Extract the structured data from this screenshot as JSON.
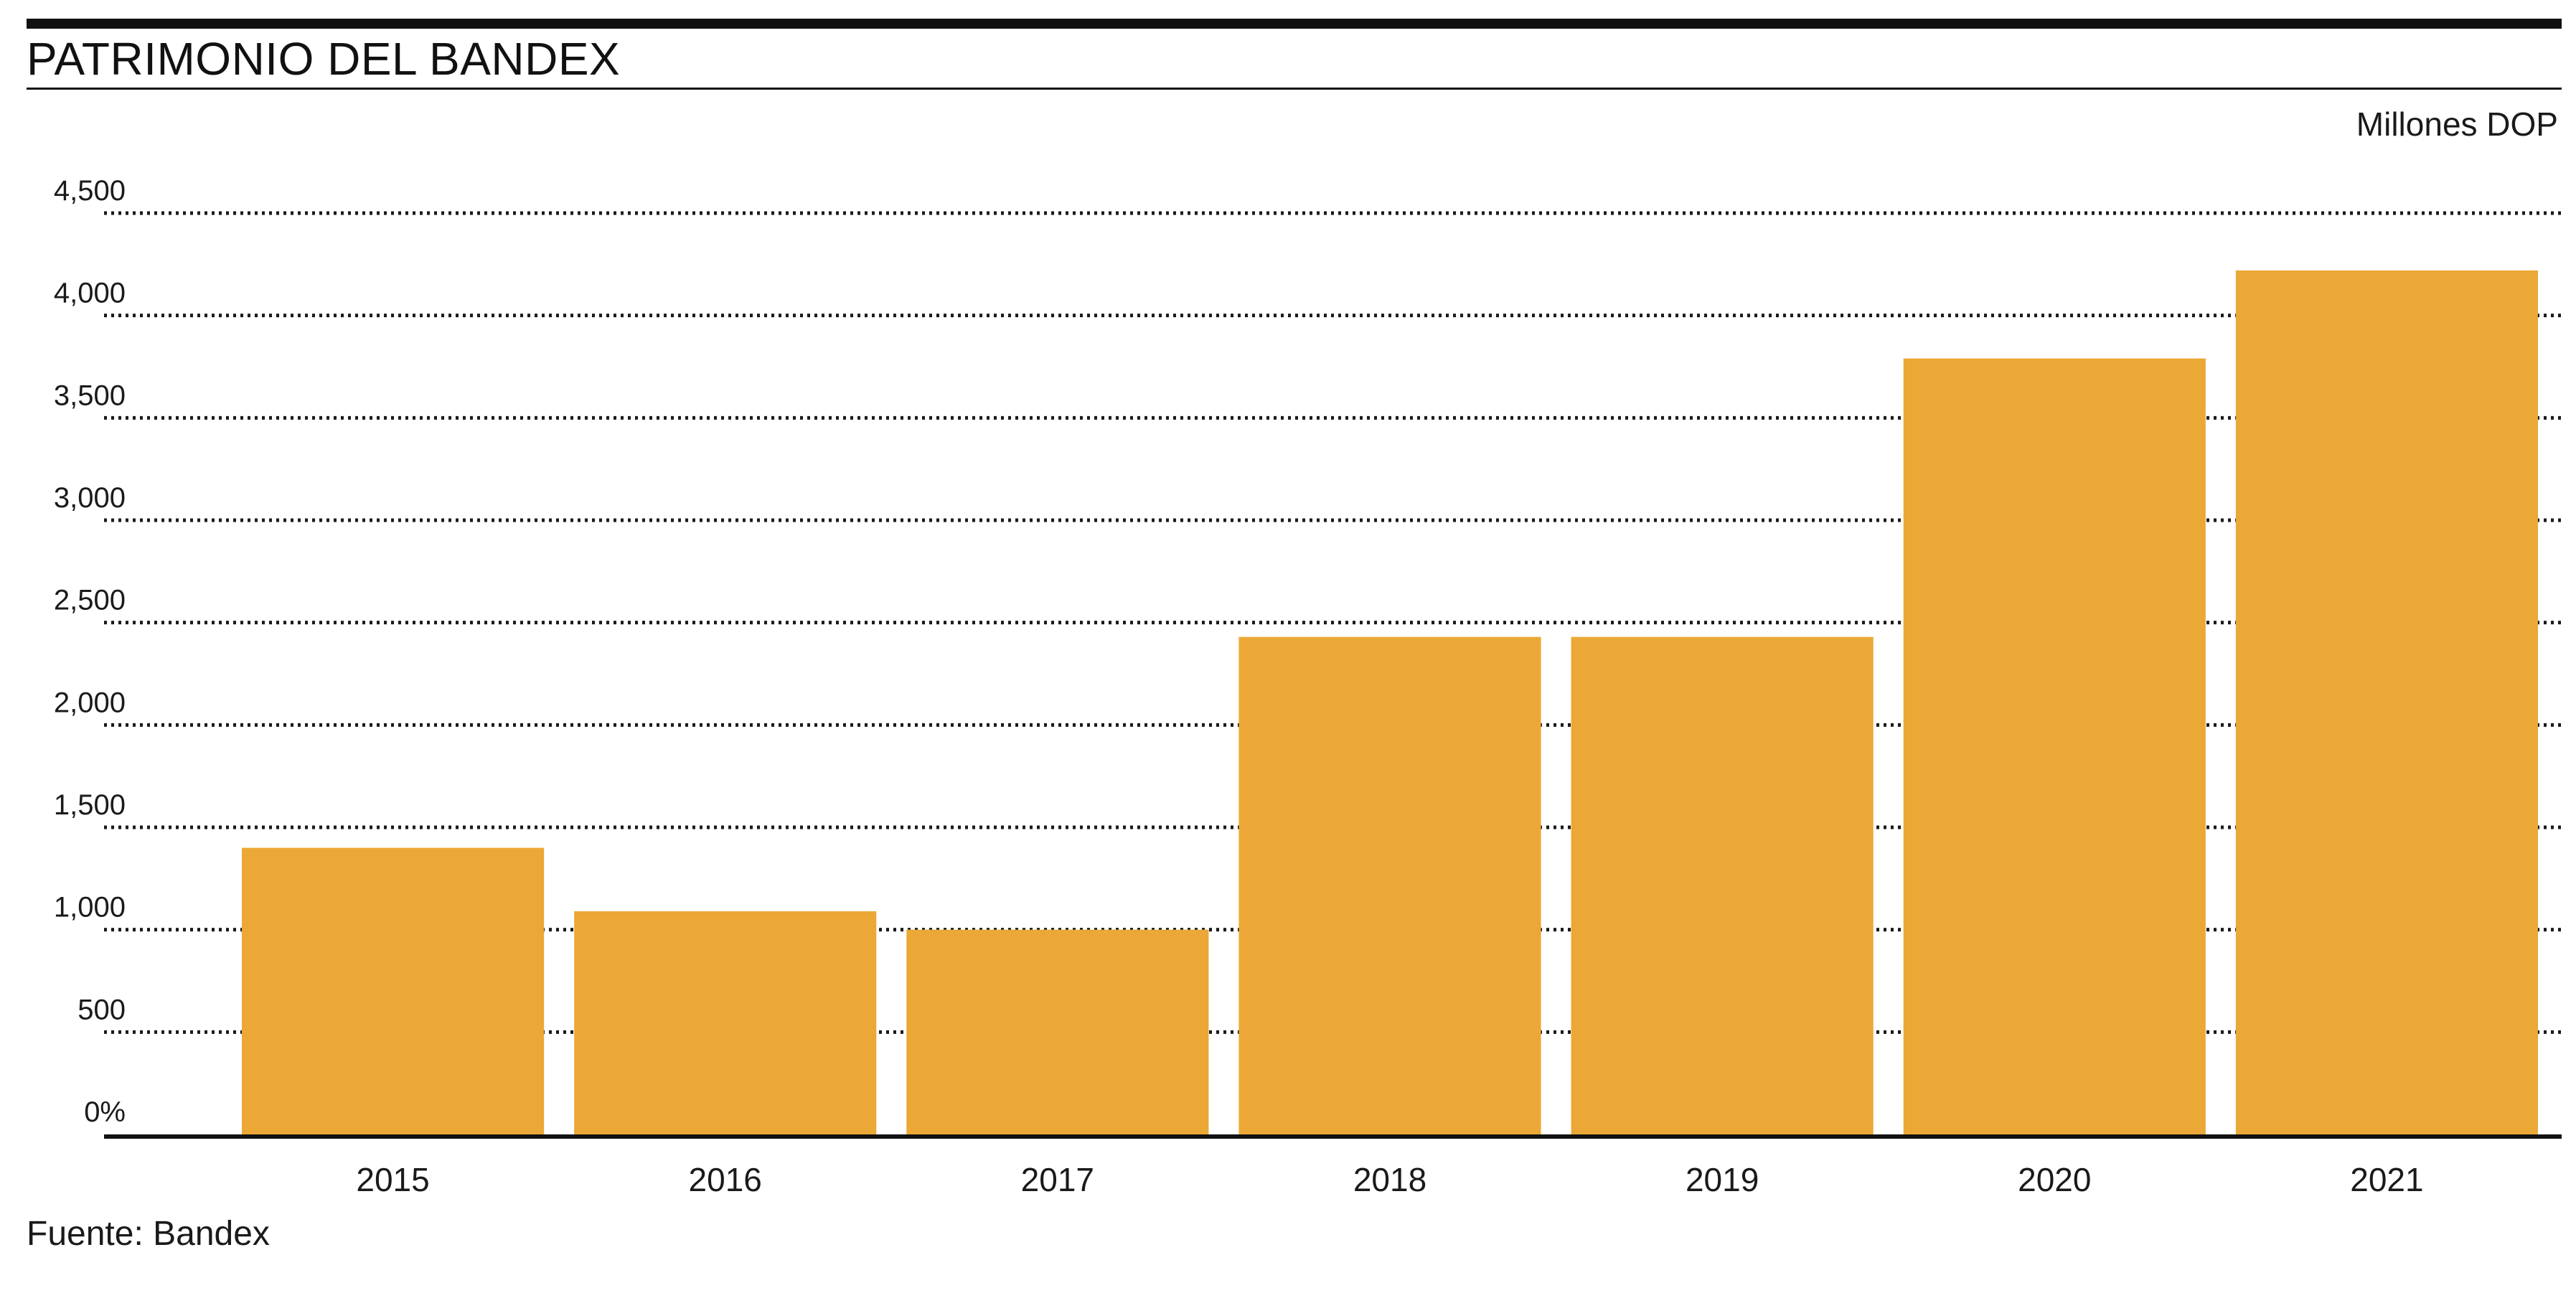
{
  "header": {
    "title": "PATRIMONIO DEL BANDEX",
    "units": "Millones DOP"
  },
  "footer": {
    "source": "Fuente: Bandex"
  },
  "colors": {
    "bar": "#EBA836",
    "rule": "#111111",
    "gridline": "#1a1a1a"
  },
  "chart_data": {
    "type": "bar",
    "categories": [
      "2015",
      "2016",
      "2017",
      "2018",
      "2019",
      "2020",
      "2021"
    ],
    "values": [
      1400,
      1090,
      1000,
      2430,
      2430,
      3790,
      4220
    ],
    "ylim": [
      0,
      4500
    ],
    "yticks": [
      0,
      500,
      1000,
      1500,
      2000,
      2500,
      3000,
      3500,
      4000,
      4500
    ],
    "ytick_labels": [
      "0%",
      "500",
      "1,000",
      "1,500",
      "2,000",
      "2,500",
      "3,000",
      "3,500",
      "4,000",
      "4,500"
    ],
    "grid": true,
    "grid_style": "dotted",
    "legend": "none"
  }
}
